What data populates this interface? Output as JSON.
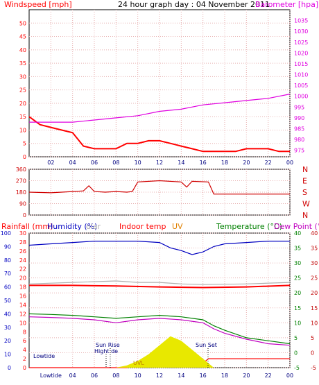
{
  "title": "24 hour graph day : 04 November 2011",
  "labels": {
    "windspeed": "Windspeed [mph]",
    "barometer": "Barometer [hpa]",
    "rainfall": "Rainfall (mm)",
    "humidity": "Humidity (%)",
    "solar": "olar",
    "indoor": "Indoor temp",
    "uv": "UV",
    "temperature": "Temperature (°C)",
    "dewpoint": "Dew Point (°C)",
    "lowtide1": "Lowtide",
    "lowtide2": "Lowtide",
    "sunrise": "Sun Rise",
    "hightide": "Hight de",
    "sunset": "Sun Set",
    "uvl": "UVL"
  },
  "colors": {
    "wind_red": "#ff0000",
    "wind_blue": "#0000c0",
    "wind_green": "#008000",
    "baro": "#e000e0",
    "dir": "#d00000",
    "hum": "#0000c0",
    "indoor": "#ff0000",
    "solar": "#b0b0b0",
    "temp": "#008000",
    "dew": "#c000c0",
    "rain": "#ff0000",
    "uv": "#e8e800",
    "grid": "#e8b0b0"
  },
  "chart_data": [
    {
      "type": "line",
      "panel": "wind",
      "x_ticks": [
        "02",
        "04",
        "06",
        "08",
        "10",
        "12",
        "14",
        "16",
        "18",
        "20",
        "22",
        "00"
      ],
      "y_left_ticks": [
        0,
        5,
        10,
        15,
        20,
        25,
        30,
        35,
        40,
        45,
        50
      ],
      "y_right_ticks": [
        975,
        980,
        985,
        990,
        995,
        1000,
        1005,
        1010,
        1015,
        1020,
        1025,
        1030,
        1035
      ],
      "ylim_left": [
        0,
        55
      ],
      "ylim_right": [
        972,
        1040
      ],
      "series": [
        {
          "name": "Windspeed [mph]",
          "x": [
            0,
            1,
            2,
            3,
            4,
            5,
            6,
            7,
            8,
            9,
            10,
            11,
            12,
            13,
            14,
            15,
            16,
            17,
            18,
            19,
            20,
            21,
            22,
            23,
            24
          ],
          "values": [
            15,
            12,
            11,
            10,
            9,
            4,
            3,
            3,
            3,
            5,
            5,
            6,
            6,
            5,
            4,
            3,
            2,
            2,
            2,
            2,
            3,
            3,
            3,
            2,
            2
          ]
        },
        {
          "name": "Barometer [hpa]",
          "x": [
            0,
            2,
            4,
            6,
            8,
            10,
            12,
            14,
            16,
            18,
            20,
            22,
            24
          ],
          "values": [
            988,
            988,
            988,
            989,
            990,
            991,
            993,
            994,
            996,
            997,
            998,
            999,
            1001
          ]
        }
      ]
    },
    {
      "type": "line",
      "panel": "direction",
      "y_left_ticks": [
        0,
        90,
        180,
        270,
        360
      ],
      "y_right_ticks": [
        "N",
        "W",
        "S",
        "E",
        "N"
      ],
      "ylim": [
        0,
        360
      ],
      "series": [
        {
          "name": "Wind direction",
          "x": [
            0,
            2,
            4,
            5,
            5.5,
            6,
            7,
            8,
            9,
            9.5,
            10,
            12,
            14,
            14.5,
            15,
            16.5,
            17,
            18,
            20,
            22,
            24
          ],
          "values": [
            180,
            175,
            185,
            190,
            230,
            185,
            180,
            185,
            180,
            185,
            260,
            270,
            260,
            220,
            265,
            260,
            165,
            165,
            165,
            165,
            165
          ]
        }
      ]
    },
    {
      "type": "line",
      "panel": "bottom",
      "x_ticks": [
        "Lowtide",
        "04",
        "06",
        "08",
        "10",
        "12",
        "14",
        "16",
        "18",
        "20",
        "22",
        "00"
      ],
      "y_rain_ticks": [
        0,
        2,
        4,
        6,
        8,
        10,
        12,
        14,
        16,
        18,
        20,
        22,
        24,
        26,
        28,
        30
      ],
      "y_hum_ticks": [
        0,
        10,
        20,
        30,
        40,
        50,
        60,
        70,
        80,
        90,
        100
      ],
      "y_temp_ticks": [
        -5,
        0,
        5,
        10,
        15,
        20,
        25,
        30,
        35,
        40
      ],
      "ylim_temp": [
        -5,
        40
      ],
      "ylim_hum": [
        0,
        100
      ],
      "series": [
        {
          "name": "Humidity (%)",
          "x": [
            0,
            2,
            4,
            6,
            8,
            10,
            12,
            13,
            14,
            15,
            16,
            17,
            18,
            20,
            22,
            24
          ],
          "values": [
            91,
            92,
            93,
            94,
            94,
            94,
            93,
            89,
            87,
            84,
            86,
            90,
            92,
            93,
            94,
            94
          ]
        },
        {
          "name": "Indoor temp",
          "x": [
            0,
            4,
            8,
            12,
            16,
            20,
            24
          ],
          "values": [
            22.5,
            22.5,
            22.3,
            22,
            21.8,
            22,
            22.5
          ]
        },
        {
          "name": "olar",
          "x": [
            0,
            4,
            8,
            10,
            12,
            14,
            16,
            20,
            24
          ],
          "values": [
            23,
            23.5,
            24,
            23.5,
            23.5,
            23,
            22.8,
            23,
            23.5
          ]
        },
        {
          "name": "Temperature (°C)",
          "x": [
            0,
            2,
            4,
            6,
            8,
            10,
            12,
            14,
            16,
            17,
            18,
            20,
            22,
            24
          ],
          "values": [
            13,
            12.8,
            12.5,
            12,
            11.5,
            12,
            12.5,
            12,
            11,
            9,
            7.5,
            5,
            4,
            3
          ]
        },
        {
          "name": "Dew Point (°C)",
          "x": [
            0,
            2,
            4,
            6,
            8,
            10,
            12,
            14,
            16,
            17,
            18,
            20,
            22,
            24
          ],
          "values": [
            12,
            11.8,
            11.5,
            11,
            10,
            11,
            11.5,
            11,
            10,
            8,
            6.5,
            4.5,
            3,
            2.5
          ]
        },
        {
          "name": "Rainfall (mm)",
          "x": [
            0,
            6,
            9,
            9.5,
            10,
            12,
            14,
            16,
            16.5,
            18,
            20,
            22,
            24
          ],
          "values": [
            0,
            0,
            0,
            0.5,
            1,
            1,
            1,
            1,
            2,
            2,
            2,
            2,
            2
          ]
        },
        {
          "name": "UV",
          "x": [
            8,
            9,
            10,
            11,
            12,
            13,
            14,
            15,
            16,
            17
          ],
          "values": [
            0,
            0.5,
            1.5,
            3,
            5,
            7,
            6,
            4,
            2,
            0
          ]
        }
      ]
    }
  ]
}
